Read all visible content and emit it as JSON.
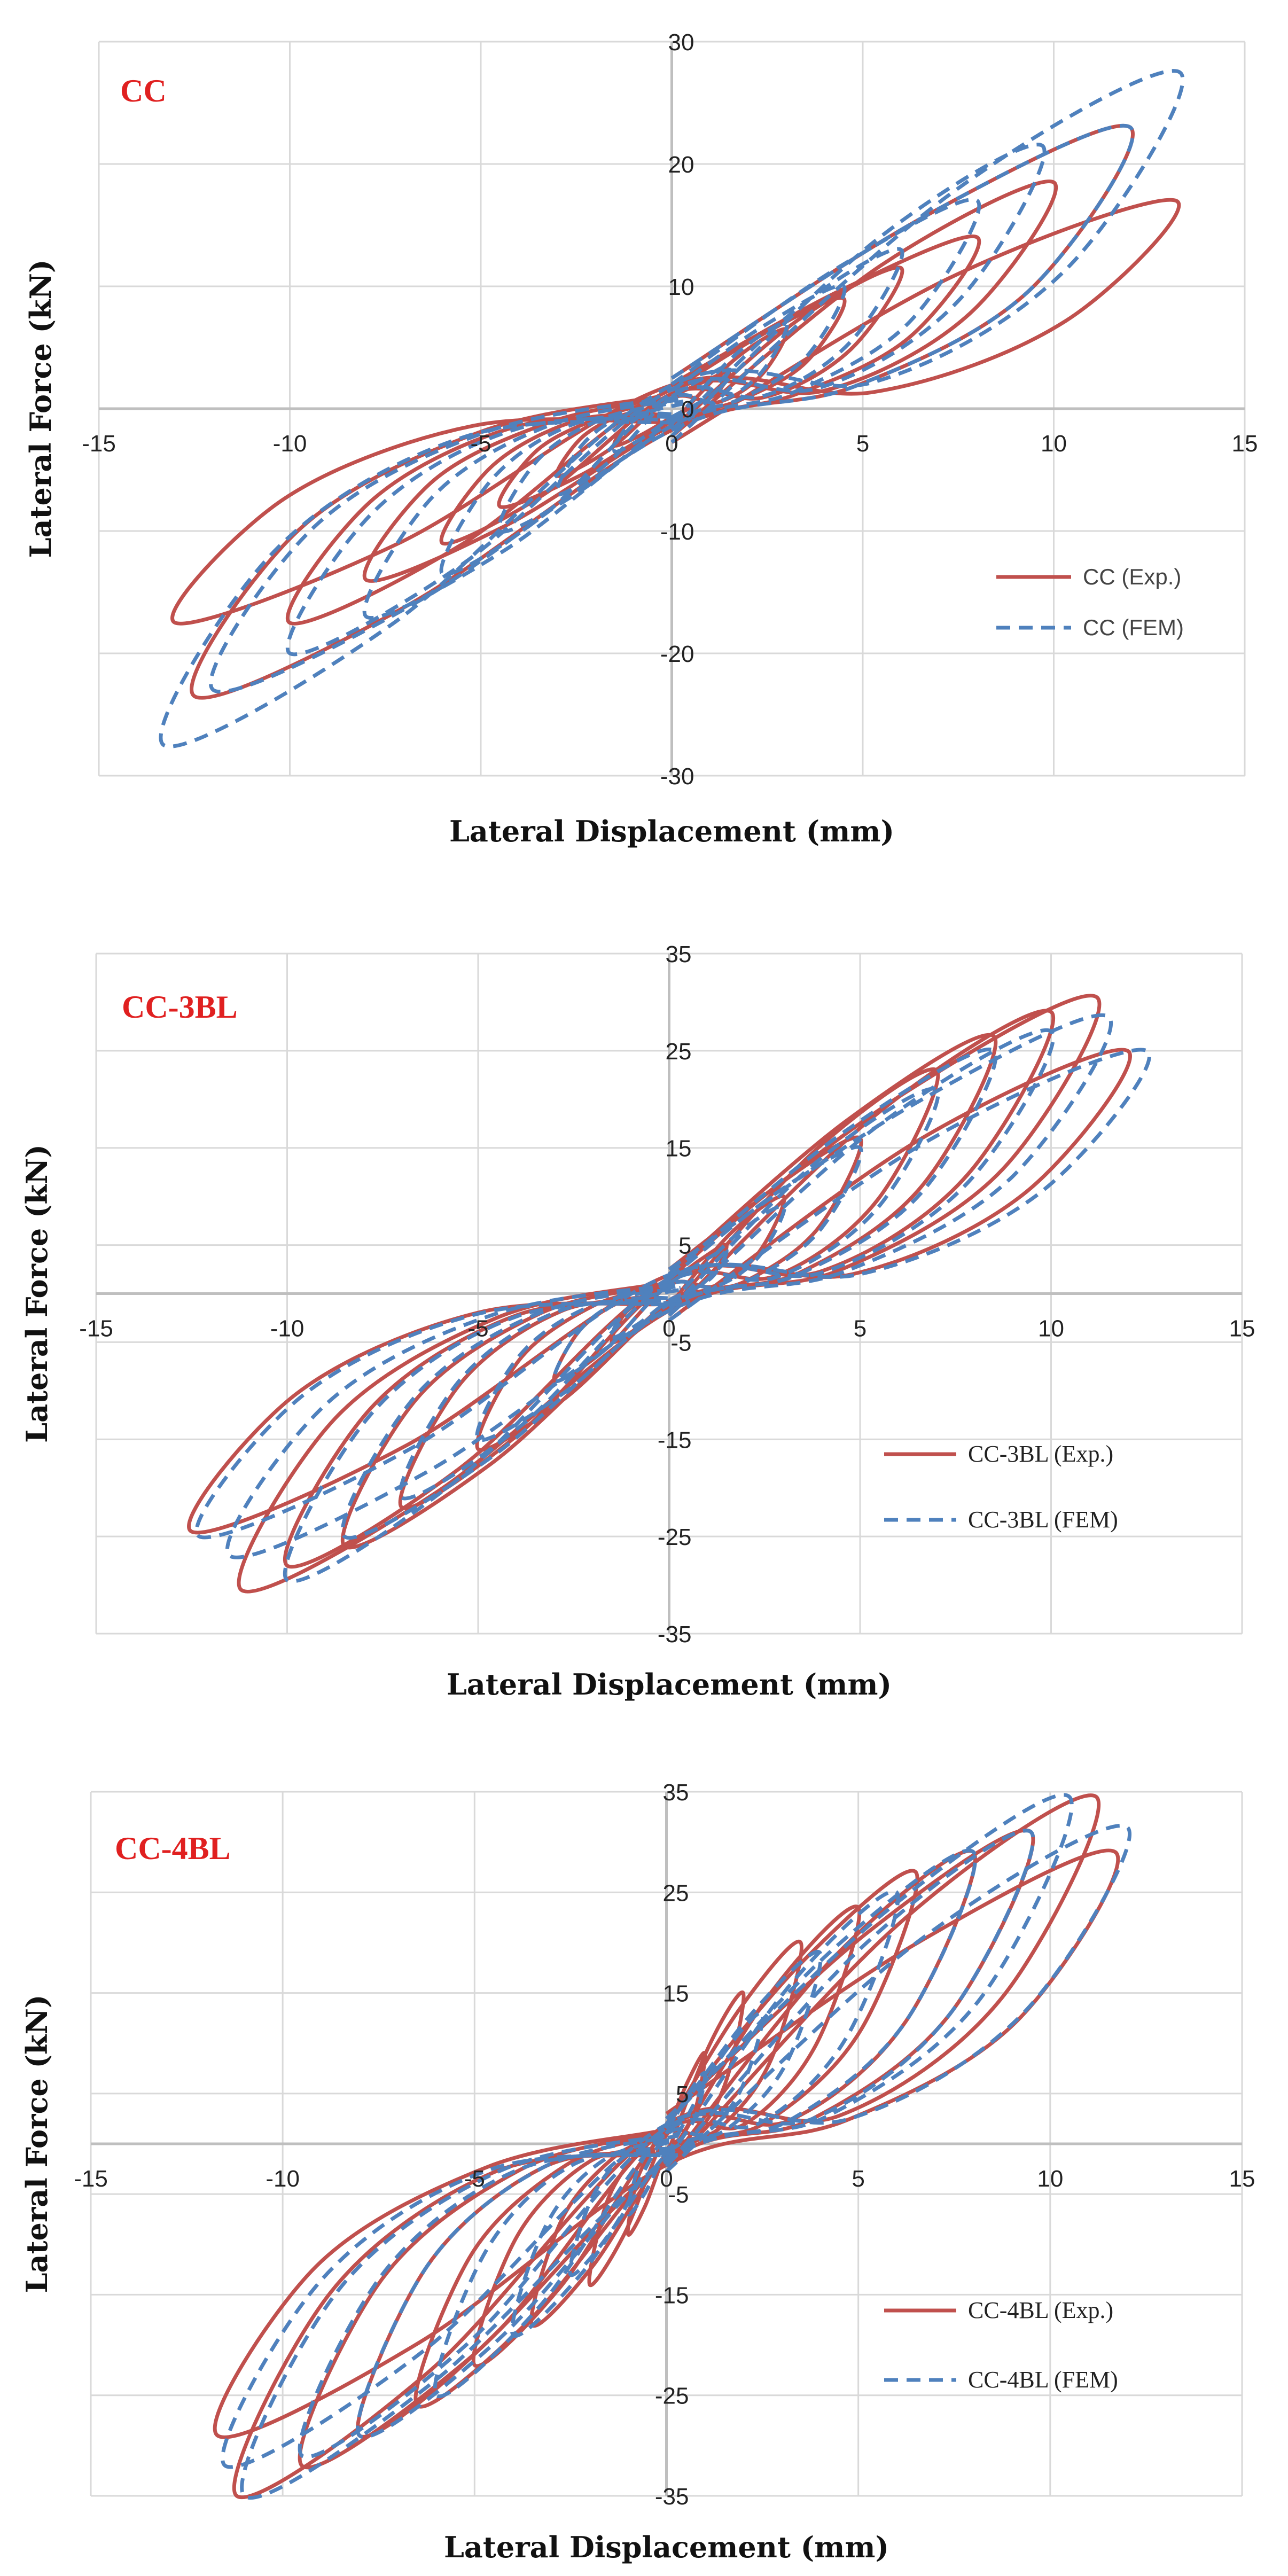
{
  "colors": {
    "experiment": "#c0504d",
    "fem": "#4f81bd",
    "label": "#e02020",
    "grid": "#d9d9d9",
    "axis": "#bfbfbf"
  },
  "chart_data": [
    {
      "type": "line",
      "panel_label": "CC",
      "xlabel": "Lateral Displacement (mm)",
      "ylabel": "Lateral Force (kN)",
      "xlim": [
        -15,
        15
      ],
      "ylim": [
        -30,
        30
      ],
      "xticks": [
        -15,
        -10,
        -5,
        0,
        5,
        10,
        15
      ],
      "yticks": [
        -30,
        -20,
        -10,
        0,
        10,
        20,
        30
      ],
      "grid": true,
      "legend_position": "bottom-right",
      "series": [
        {
          "name": "CC (Exp.)",
          "style": "solid",
          "loops": [
            {
              "xmax": 1.5,
              "ypos": 3,
              "xmin": -1.5,
              "yneg": -3
            },
            {
              "xmax": 3,
              "ypos": 6.5,
              "xmin": -3,
              "yneg": -5.5
            },
            {
              "xmax": 4.5,
              "ypos": 9,
              "xmin": -4.5,
              "yneg": -8
            },
            {
              "xmax": 6,
              "ypos": 11.5,
              "xmin": -6,
              "yneg": -11
            },
            {
              "xmax": 8,
              "ypos": 14,
              "xmin": -8,
              "yneg": -14
            },
            {
              "xmax": 10,
              "ypos": 18.5,
              "xmin": -10,
              "yneg": -17.5
            },
            {
              "xmax": 12,
              "ypos": 23,
              "xmin": -12.5,
              "yneg": -23.5
            },
            {
              "xmax": 13.2,
              "ypos": 17,
              "xmin": -13,
              "yneg": -17.5
            }
          ]
        },
        {
          "name": "CC (FEM)",
          "style": "dashed",
          "loops": [
            {
              "xmax": 1.5,
              "ypos": 3.5,
              "xmin": -1.5,
              "yneg": -3.5
            },
            {
              "xmax": 3,
              "ypos": 7,
              "xmin": -3,
              "yneg": -7
            },
            {
              "xmax": 4.5,
              "ypos": 10,
              "xmin": -4.5,
              "yneg": -10
            },
            {
              "xmax": 6,
              "ypos": 13,
              "xmin": -6,
              "yneg": -13.5
            },
            {
              "xmax": 8,
              "ypos": 17,
              "xmin": -8,
              "yneg": -17
            },
            {
              "xmax": 9.7,
              "ypos": 21.5,
              "xmin": -10,
              "yneg": -20
            },
            {
              "xmax": 12,
              "ypos": 23,
              "xmin": -12,
              "yneg": -23
            },
            {
              "xmax": 13.3,
              "ypos": 27.5,
              "xmin": -13.3,
              "yneg": -27.5
            }
          ]
        }
      ]
    },
    {
      "type": "line",
      "panel_label": "CC-3BL",
      "xlabel": "Lateral Displacement (mm)",
      "ylabel": "Lateral Force (kN)",
      "xlim": [
        -15,
        15
      ],
      "ylim": [
        -35,
        35
      ],
      "xticks": [
        -15,
        -10,
        -5,
        0,
        5,
        10,
        15
      ],
      "yticks": [
        -35,
        -25,
        -15,
        -5,
        5,
        15,
        25,
        35
      ],
      "grid": true,
      "legend_position": "bottom-right",
      "series": [
        {
          "name": "CC-3BL (Exp.)",
          "style": "solid",
          "loops": [
            {
              "xmax": 1.5,
              "ypos": 5,
              "xmin": -1.5,
              "yneg": -5
            },
            {
              "xmax": 3,
              "ypos": 10,
              "xmin": -3,
              "yneg": -9
            },
            {
              "xmax": 5,
              "ypos": 16,
              "xmin": -5,
              "yneg": -16
            },
            {
              "xmax": 7,
              "ypos": 23,
              "xmin": -7,
              "yneg": -22
            },
            {
              "xmax": 8.5,
              "ypos": 26.5,
              "xmin": -8.5,
              "yneg": -26
            },
            {
              "xmax": 10,
              "ypos": 29,
              "xmin": -10,
              "yneg": -28
            },
            {
              "xmax": 11.2,
              "ypos": 30.5,
              "xmin": -11.2,
              "yneg": -30.5
            },
            {
              "xmax": 12,
              "ypos": 25,
              "xmin": -12.5,
              "yneg": -24.5
            }
          ]
        },
        {
          "name": "CC-3BL (FEM)",
          "style": "dashed",
          "loops": [
            {
              "xmax": 1.5,
              "ypos": 4.5,
              "xmin": -1.5,
              "yneg": -4.5
            },
            {
              "xmax": 3,
              "ypos": 9,
              "xmin": -3,
              "yneg": -9
            },
            {
              "xmax": 5,
              "ypos": 15,
              "xmin": -5,
              "yneg": -15
            },
            {
              "xmax": 7,
              "ypos": 21,
              "xmin": -7,
              "yneg": -21
            },
            {
              "xmax": 8.5,
              "ypos": 25,
              "xmin": -8.5,
              "yneg": -25
            },
            {
              "xmax": 10,
              "ypos": 27,
              "xmin": -10,
              "yneg": -29.5
            },
            {
              "xmax": 11.5,
              "ypos": 28.5,
              "xmin": -11.5,
              "yneg": -27
            },
            {
              "xmax": 12.5,
              "ypos": 25,
              "xmin": -12.3,
              "yneg": -25
            }
          ]
        }
      ]
    },
    {
      "type": "line",
      "panel_label": "CC-4BL",
      "xlabel": "Lateral Displacement (mm)",
      "ylabel": "Lateral Force (kN)",
      "xlim": [
        -15,
        15
      ],
      "ylim": [
        -35,
        35
      ],
      "xticks": [
        -15,
        -10,
        -5,
        0,
        5,
        10,
        15
      ],
      "yticks": [
        -35,
        -25,
        -15,
        -5,
        5,
        15,
        25,
        35
      ],
      "grid": true,
      "legend_position": "bottom-right",
      "series": [
        {
          "name": "CC-4BL (Exp.)",
          "style": "solid",
          "loops": [
            {
              "xmax": 1,
              "ypos": 9,
              "xmin": -1,
              "yneg": -9
            },
            {
              "xmax": 2,
              "ypos": 15,
              "xmin": -2,
              "yneg": -14
            },
            {
              "xmax": 3.5,
              "ypos": 20,
              "xmin": -3.5,
              "yneg": -18
            },
            {
              "xmax": 5,
              "ypos": 23.5,
              "xmin": -5,
              "yneg": -22
            },
            {
              "xmax": 6.5,
              "ypos": 27,
              "xmin": -6.5,
              "yneg": -26
            },
            {
              "xmax": 8,
              "ypos": 29,
              "xmin": -8,
              "yneg": -29
            },
            {
              "xmax": 9.5,
              "ypos": 31,
              "xmin": -9.5,
              "yneg": -32
            },
            {
              "xmax": 11.2,
              "ypos": 34.5,
              "xmin": -11.2,
              "yneg": -35
            },
            {
              "xmax": 11.7,
              "ypos": 29,
              "xmin": -11.7,
              "yneg": -29
            }
          ]
        },
        {
          "name": "CC-4BL (FEM)",
          "style": "dashed",
          "loops": [
            {
              "xmax": 1,
              "ypos": 7,
              "xmin": -1,
              "yneg": -7
            },
            {
              "xmax": 2.5,
              "ypos": 13,
              "xmin": -2.5,
              "yneg": -13
            },
            {
              "xmax": 4,
              "ypos": 19,
              "xmin": -4,
              "yneg": -19
            },
            {
              "xmax": 6,
              "ypos": 25,
              "xmin": -6,
              "yneg": -25
            },
            {
              "xmax": 8,
              "ypos": 29,
              "xmin": -8,
              "yneg": -29
            },
            {
              "xmax": 9.5,
              "ypos": 31,
              "xmin": -9.5,
              "yneg": -31
            },
            {
              "xmax": 10.5,
              "ypos": 34.5,
              "xmin": -11,
              "yneg": -35
            },
            {
              "xmax": 12,
              "ypos": 31.5,
              "xmin": -11.5,
              "yneg": -32
            }
          ]
        }
      ]
    }
  ]
}
